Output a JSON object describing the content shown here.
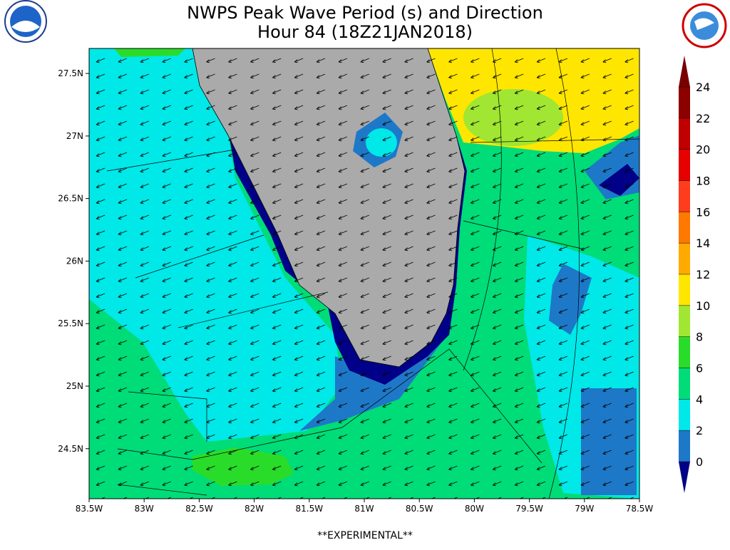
{
  "header": {
    "title": "NWPS Peak Wave Period (s) and Direction",
    "subtitle": "Hour 84 (18Z21JAN2018)"
  },
  "map": {
    "xlim": [
      -83.5,
      -78.5
    ],
    "ylim": [
      24.1,
      27.7
    ],
    "xticks": [
      {
        "value": -83.5,
        "label": "83.5W"
      },
      {
        "value": -83,
        "label": "83W"
      },
      {
        "value": -82.5,
        "label": "82.5W"
      },
      {
        "value": -82,
        "label": "82W"
      },
      {
        "value": -81.5,
        "label": "81.5W"
      },
      {
        "value": -81,
        "label": "81W"
      },
      {
        "value": -80.5,
        "label": "80.5W"
      },
      {
        "value": -80,
        "label": "80W"
      },
      {
        "value": -79.5,
        "label": "79.5W"
      },
      {
        "value": -79,
        "label": "79W"
      },
      {
        "value": -78.5,
        "label": "78.5W"
      }
    ],
    "yticks": [
      {
        "value": 24.5,
        "label": "24.5N"
      },
      {
        "value": 25,
        "label": "25N"
      },
      {
        "value": 25.5,
        "label": "25.5N"
      },
      {
        "value": 26,
        "label": "26N"
      },
      {
        "value": 26.5,
        "label": "26.5N"
      },
      {
        "value": 27,
        "label": "27N"
      },
      {
        "value": 27.5,
        "label": "27.5N"
      }
    ]
  },
  "colorbar": {
    "ticks": [
      0,
      2,
      4,
      6,
      8,
      10,
      12,
      14,
      16,
      18,
      20,
      22,
      24
    ],
    "colors": [
      "#1e78c8",
      "#00e8e8",
      "#00dc78",
      "#2adc2a",
      "#a0e632",
      "#ffe600",
      "#ffaa00",
      "#ff7800",
      "#ff3c1e",
      "#e60000",
      "#c00000",
      "#8c0000"
    ],
    "under_color": "#000088",
    "over_color": "#7a0000"
  },
  "footer": "**EXPERIMENTAL**"
}
